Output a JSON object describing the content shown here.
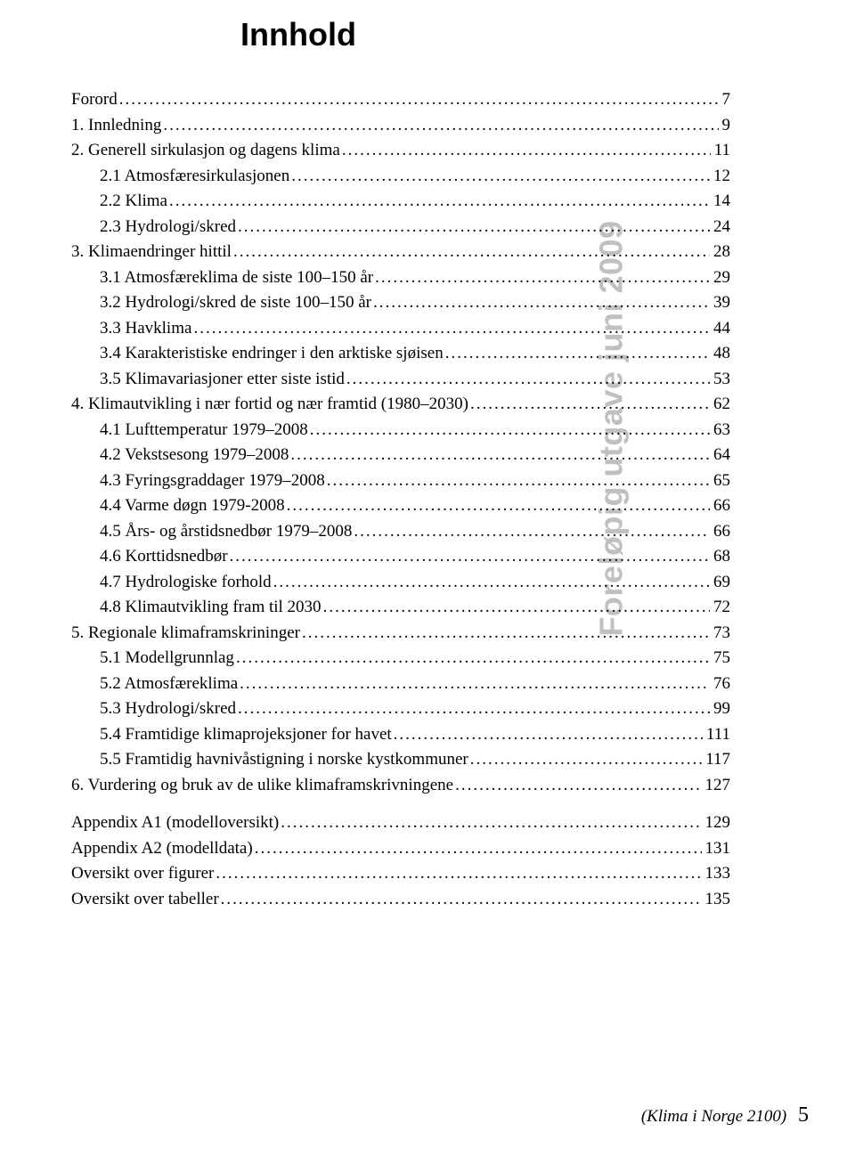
{
  "title": "Innhold",
  "sidebar_text": "Foreløpig utgave juni 2009",
  "footer_label": "(Klima i Norge 2100)",
  "footer_page": "5",
  "toc": [
    {
      "label": "Forord",
      "page": "7",
      "indent": 0
    },
    {
      "label": "1. Innledning",
      "page": "9",
      "indent": 0
    },
    {
      "label": "2. Generell sirkulasjon og dagens klima",
      "page": "11",
      "indent": 0
    },
    {
      "label": "2.1 Atmosfæresirkulasjonen",
      "page": "12",
      "indent": 1
    },
    {
      "label": "2.2 Klima",
      "page": "14",
      "indent": 1
    },
    {
      "label": "2.3 Hydrologi/skred",
      "page": "24",
      "indent": 1
    },
    {
      "label": "3. Klimaendringer hittil",
      "page": "28",
      "indent": 0
    },
    {
      "label": "3.1 Atmosfæreklima de siste 100–150 år",
      "page": "29",
      "indent": 1
    },
    {
      "label": "3.2 Hydrologi/skred de siste 100–150 år",
      "page": "39",
      "indent": 1
    },
    {
      "label": "3.3 Havklima",
      "page": "44",
      "indent": 1
    },
    {
      "label": "3.4 Karakteristiske endringer i den arktiske sjøisen",
      "page": "48",
      "indent": 1
    },
    {
      "label": "3.5 Klimavariasjoner etter siste istid",
      "page": "53",
      "indent": 1
    },
    {
      "label": "4. Klimautvikling i nær fortid og nær framtid (1980–2030)",
      "page": "62",
      "indent": 0
    },
    {
      "label": "4.1 Lufttemperatur 1979–2008",
      "page": "63",
      "indent": 1
    },
    {
      "label": "4.2 Vekstsesong 1979–2008",
      "page": "64",
      "indent": 1
    },
    {
      "label": "4.3 Fyringsgraddager 1979–2008",
      "page": "65",
      "indent": 1
    },
    {
      "label": "4.4 Varme døgn 1979-2008",
      "page": "66",
      "indent": 1
    },
    {
      "label": "4.5 Års- og årstidsnedbør 1979–2008",
      "page": "66",
      "indent": 1
    },
    {
      "label": "4.6 Korttidsnedbør",
      "page": "68",
      "indent": 1
    },
    {
      "label": "4.7 Hydrologiske forhold",
      "page": "69",
      "indent": 1
    },
    {
      "label": "4.8 Klimautvikling fram til 2030",
      "page": "72",
      "indent": 1
    },
    {
      "label": "5. Regionale klimaframskrininger",
      "page": "73",
      "indent": 0
    },
    {
      "label": "5.1 Modellgrunnlag",
      "page": "75",
      "indent": 1
    },
    {
      "label": "5.2 Atmosfæreklima",
      "page": "76",
      "indent": 1
    },
    {
      "label": "5.3 Hydrologi/skred",
      "page": "99",
      "indent": 1
    },
    {
      "label": "5.4  Framtidige klimaprojeksjoner for havet",
      "page": "111",
      "indent": 1
    },
    {
      "label": "5.5 Framtidig havnivåstigning i norske kystkommuner",
      "page": "117",
      "indent": 1
    },
    {
      "label": "6. Vurdering og bruk av de ulike klimaframskrivningene",
      "page": "127",
      "indent": 0
    },
    {
      "gap": true
    },
    {
      "label": "Appendix A1 (modelloversikt)",
      "page": "129",
      "indent": 0
    },
    {
      "label": "Appendix A2  (modelldata)",
      "page": "131",
      "indent": 0
    },
    {
      "label": "Oversikt over figurer",
      "page": "133",
      "indent": 0
    },
    {
      "label": "Oversikt over tabeller",
      "page": "135",
      "indent": 0
    }
  ],
  "colors": {
    "background": "#ffffff",
    "text": "#000000",
    "sidebar": "#c0c0c2"
  },
  "typography": {
    "title_fontsize": 36,
    "title_weight": "bold",
    "body_fontsize": 19,
    "sidebar_fontsize": 36,
    "footer_fontsize": 19,
    "footer_pagenum_fontsize": 24
  }
}
